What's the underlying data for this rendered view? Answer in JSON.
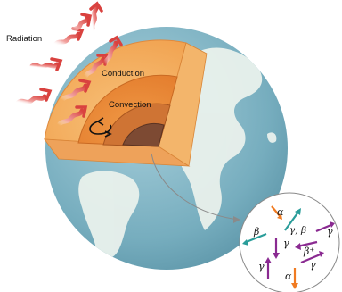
{
  "labels": {
    "radiation": "Radiation",
    "conduction": "Conduction",
    "convection": "Convection"
  },
  "particles": {
    "alpha_top": "α",
    "gamma_beta": "γ, β",
    "beta_left": "β",
    "gamma_right": "γ",
    "gamma_center": "γ",
    "beta_plus": "β⁺",
    "gamma_right_low": "γ",
    "gamma_left_low": "γ",
    "alpha_bottom": "α"
  },
  "colors": {
    "ocean": "#7fb4c4",
    "land": "#e7efe9",
    "crust_outer": "#f6b35c",
    "mantle": "#f08c33",
    "outer_core": "#c86a2c",
    "inner_core": "#7d4a33",
    "radiation_arrow": "#d9423f",
    "teal_arrow": "#2a9d9a",
    "orange_arrow": "#f07b22",
    "purple_arrow": "#8a2a91"
  },
  "icons": {
    "radiation": "wavy-arrow-icon",
    "convection": "circular-arrow-icon",
    "callout": "curved-arrow-icon"
  }
}
